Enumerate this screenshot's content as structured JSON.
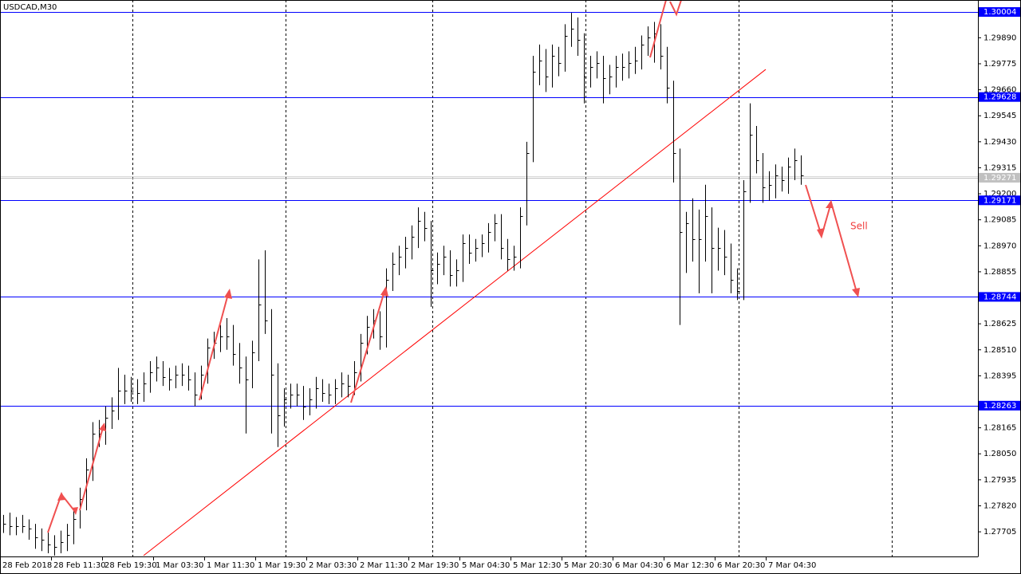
{
  "chart_data": {
    "type": "hlc",
    "title": "USDCAD,M30",
    "annotation": "Sell",
    "categories": [
      "28 Feb 2018",
      null,
      null,
      null,
      null,
      null,
      null,
      null,
      "28 Feb 11:30",
      null,
      null,
      null,
      null,
      null,
      null,
      null,
      "28 Feb 19:30",
      null,
      null,
      null,
      null,
      null,
      null,
      null,
      "1 Mar 03:30",
      null,
      null,
      null,
      null,
      null,
      null,
      null,
      "1 Mar 11:30",
      null,
      null,
      null,
      null,
      null,
      null,
      null,
      "1 Mar 19:30",
      null,
      null,
      null,
      null,
      null,
      null,
      null,
      "2 Mar 03:30",
      null,
      null,
      null,
      null,
      null,
      null,
      null,
      "2 Mar 11:30",
      null,
      null,
      null,
      null,
      null,
      null,
      null,
      "2 Mar 19:30",
      null,
      null,
      null,
      null,
      null,
      null,
      null,
      "5 Mar 04:30",
      null,
      null,
      null,
      null,
      null,
      null,
      null,
      "5 Mar 12:30",
      null,
      null,
      null,
      null,
      null,
      null,
      null,
      "5 Mar 20:30",
      null,
      null,
      null,
      null,
      null,
      null,
      null,
      "6 Mar 04:30",
      null,
      null,
      null,
      null,
      null,
      null,
      null,
      "6 Mar 12:30",
      null,
      null,
      null,
      null,
      null,
      null,
      null,
      "6 Mar 20:30",
      null,
      null,
      null,
      null,
      null,
      null,
      null,
      "7 Mar 04:30",
      null,
      null,
      null,
      null,
      null
    ],
    "high": [
      1.2778,
      1.2779,
      1.2777,
      1.2778,
      1.2776,
      1.2774,
      1.2772,
      1.2771,
      1.2769,
      1.2771,
      1.2774,
      1.278,
      1.279,
      1.2803,
      1.2819,
      1.282,
      1.2826,
      1.283,
      1.2843,
      1.284,
      1.2839,
      1.2838,
      1.2841,
      1.2846,
      1.2848,
      1.2846,
      1.2843,
      1.2844,
      1.2845,
      1.2844,
      1.2841,
      1.2844,
      1.2856,
      1.2859,
      1.2862,
      1.2865,
      1.2862,
      1.2854,
      1.2848,
      1.2855,
      1.2891,
      1.2895,
      1.2869,
      1.2845,
      1.2834,
      1.2836,
      1.2836,
      1.2835,
      1.2834,
      1.2839,
      1.2838,
      1.2836,
      1.2838,
      1.2841,
      1.284,
      1.2846,
      1.2858,
      1.2866,
      1.2869,
      1.2868,
      1.2887,
      1.2894,
      1.2897,
      1.2901,
      1.2906,
      1.2914,
      1.2912,
      1.2908,
      1.2894,
      1.2897,
      1.2895,
      1.2891,
      1.2902,
      1.2902,
      1.29,
      1.2902,
      1.2907,
      1.2911,
      1.2911,
      1.29,
      1.2897,
      1.2914,
      1.2943,
      1.2981,
      1.2986,
      1.2984,
      1.2986,
      1.2985,
      1.2995,
      1.3,
      1.2998,
      1.2991,
      1.2981,
      1.2983,
      1.2981,
      1.2977,
      1.2981,
      1.2982,
      1.2983,
      1.2985,
      1.299,
      1.2994,
      1.2996,
      1.2995,
      1.2985,
      1.297,
      1.294,
      1.2912,
      1.2918,
      1.2913,
      1.2924,
      1.2914,
      1.2905,
      1.2904,
      1.2898,
      1.2887,
      1.2926,
      1.296,
      1.295,
      1.2938,
      1.293,
      1.2933,
      1.2932,
      1.2936,
      1.294,
      1.2937
    ],
    "low": [
      1.277,
      1.2769,
      1.2769,
      1.277,
      1.2767,
      1.2763,
      1.2762,
      1.2761,
      1.276,
      1.2761,
      1.2762,
      1.2765,
      1.2772,
      1.278,
      1.2793,
      1.2808,
      1.2809,
      1.2816,
      1.282,
      1.2827,
      1.2828,
      1.2827,
      1.2828,
      1.2832,
      1.2837,
      1.2835,
      1.2833,
      1.2834,
      1.2835,
      1.2833,
      1.2826,
      1.2829,
      1.2836,
      1.2847,
      1.285,
      1.2851,
      1.2844,
      1.2836,
      1.2814,
      1.2834,
      1.2846,
      1.2858,
      1.2814,
      1.2808,
      1.2817,
      1.2825,
      1.2826,
      1.282,
      1.2822,
      1.2825,
      1.2828,
      1.2827,
      1.2827,
      1.283,
      1.283,
      1.2831,
      1.2837,
      1.2849,
      1.2856,
      1.2851,
      1.2852,
      1.2877,
      1.2884,
      1.2887,
      1.2891,
      1.2896,
      1.2899,
      1.287,
      1.288,
      1.2884,
      1.2879,
      1.2879,
      1.2881,
      1.2889,
      1.289,
      1.2892,
      1.2894,
      1.2899,
      1.2891,
      1.2886,
      1.2886,
      1.2887,
      1.2906,
      1.2934,
      1.2968,
      1.2965,
      1.2967,
      1.2972,
      1.2974,
      1.2985,
      1.2981,
      1.296,
      1.2967,
      1.2971,
      1.296,
      1.2964,
      1.2967,
      1.297,
      1.2971,
      1.2973,
      1.2975,
      1.2981,
      1.2978,
      1.2975,
      1.296,
      1.2925,
      1.2862,
      1.2885,
      1.289,
      1.2876,
      1.289,
      1.2876,
      1.2886,
      1.2884,
      1.2876,
      1.2873,
      1.2873,
      1.2916,
      1.2929,
      1.2916,
      1.2917,
      1.2918,
      1.2921,
      1.292,
      1.2926,
      1.2924
    ],
    "close": [
      1.2774,
      1.2773,
      1.2773,
      1.2773,
      1.2772,
      1.2768,
      1.2767,
      1.2765,
      1.2764,
      1.2766,
      1.2769,
      1.2776,
      1.2785,
      1.2798,
      1.2814,
      1.2814,
      1.2821,
      1.2824,
      1.2833,
      1.2833,
      1.2833,
      1.2832,
      1.2836,
      1.2841,
      1.2843,
      1.2839,
      1.2838,
      1.284,
      1.284,
      1.2838,
      1.2831,
      1.284,
      1.2852,
      1.2854,
      1.2857,
      1.2857,
      1.2849,
      1.2843,
      1.2838,
      1.285,
      1.2871,
      1.2864,
      1.284,
      1.2822,
      1.2829,
      1.2831,
      1.2831,
      1.2826,
      1.2829,
      1.2834,
      1.2832,
      1.2831,
      1.2834,
      1.2836,
      1.2835,
      1.2841,
      1.2854,
      1.2861,
      1.2864,
      1.2857,
      1.2882,
      1.2889,
      1.2892,
      1.2896,
      1.2901,
      1.2908,
      1.2905,
      1.2886,
      1.2889,
      1.2892,
      1.2884,
      1.2886,
      1.2898,
      1.2894,
      1.2896,
      1.2898,
      1.2903,
      1.2907,
      1.2896,
      1.2891,
      1.2892,
      1.291,
      1.2938,
      1.2974,
      1.2979,
      1.2972,
      1.2981,
      1.2978,
      1.299,
      1.2993,
      1.2988,
      1.2972,
      1.2976,
      1.2978,
      1.2971,
      1.2972,
      1.2976,
      1.2976,
      1.2978,
      1.2979,
      1.2986,
      1.2989,
      1.2991,
      1.2981,
      1.2967,
      1.2938,
      1.2903,
      1.2907,
      1.29,
      1.29,
      1.291,
      1.2896,
      1.2896,
      1.2892,
      1.2882,
      1.2877,
      1.2921,
      1.2946,
      1.2935,
      1.2923,
      1.2924,
      1.2928,
      1.2926,
      1.2932,
      1.2935,
      1.2928
    ],
    "color": "#000000",
    "ylim": [
      1.27596,
      1.30057
    ],
    "yticks": [
      {
        "value": 1.2989,
        "label": "1.29890"
      },
      1.29775,
      {
        "value": 1.2966,
        "label": "1.29660"
      },
      1.29545,
      {
        "value": 1.2943,
        "label": "1.29430"
      },
      1.29315,
      {
        "value": 1.292,
        "label": "1.29200"
      },
      1.29085,
      {
        "value": 1.2897,
        "label": "1.28970"
      },
      1.28855,
      1.28625,
      {
        "value": 1.2851,
        "label": "1.28510"
      },
      1.28395,
      1.28165,
      {
        "value": 1.2805,
        "label": "1.28050"
      },
      1.27935,
      {
        "value": 1.2782,
        "label": "1.27820"
      },
      1.27705
    ],
    "levels": [
      1.30004,
      1.29628,
      1.29171,
      1.28744,
      1.28263
    ],
    "levels_color": "#0000ff",
    "last_price": 1.29271,
    "trendline": {
      "x": [
        22,
        119.5
      ],
      "y": [
        1.276,
        1.2975
      ],
      "color": "#ff0000"
    }
  }
}
